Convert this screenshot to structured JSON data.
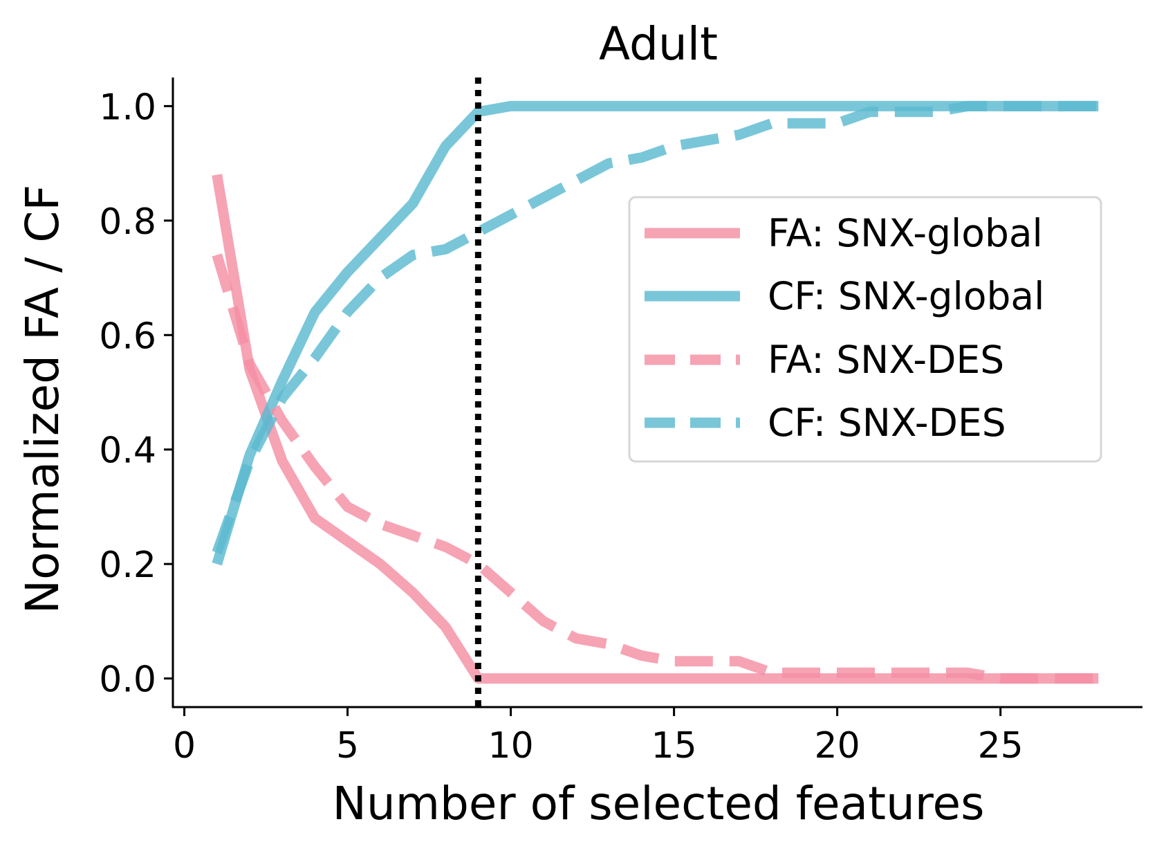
{
  "chart_data": {
    "type": "line",
    "title": "Adult",
    "xlabel": "Number of selected features",
    "ylabel": "Normalized FA / CF",
    "xlim": [
      -0.35,
      29.35
    ],
    "ylim": [
      -0.05,
      1.05
    ],
    "xticks": [
      0,
      5,
      10,
      15,
      20,
      25
    ],
    "yticks": [
      0.0,
      0.2,
      0.4,
      0.6,
      0.8,
      1.0
    ],
    "xtick_labels": [
      "0",
      "5",
      "10",
      "15",
      "20",
      "25"
    ],
    "ytick_labels": [
      "0.0",
      "0.2",
      "0.4",
      "0.6",
      "0.8",
      "1.0"
    ],
    "grid": false,
    "legend_position": "center-right",
    "vline": {
      "x": 9,
      "style": "dotted",
      "color": "#000000"
    },
    "x": [
      1,
      2,
      3,
      4,
      5,
      6,
      7,
      8,
      9,
      10,
      11,
      12,
      13,
      14,
      15,
      16,
      17,
      18,
      19,
      20,
      21,
      22,
      23,
      24,
      25,
      26,
      27,
      28
    ],
    "series": [
      {
        "name": "FA: SNX-global",
        "color": "#f48fa3",
        "dash": "solid",
        "values": [
          0.88,
          0.54,
          0.38,
          0.28,
          0.24,
          0.2,
          0.15,
          0.09,
          0.0,
          0.0,
          0.0,
          0.0,
          0.0,
          0.0,
          0.0,
          0.0,
          0.0,
          0.0,
          0.0,
          0.0,
          0.0,
          0.0,
          0.0,
          0.0,
          0.0,
          0.0,
          0.0,
          0.0
        ]
      },
      {
        "name": "CF: SNX-global",
        "color": "#5bbad1",
        "dash": "solid",
        "values": [
          0.2,
          0.39,
          0.52,
          0.64,
          0.71,
          0.77,
          0.83,
          0.93,
          0.99,
          1.0,
          1.0,
          1.0,
          1.0,
          1.0,
          1.0,
          1.0,
          1.0,
          1.0,
          1.0,
          1.0,
          1.0,
          1.0,
          1.0,
          1.0,
          1.0,
          1.0,
          1.0,
          1.0
        ]
      },
      {
        "name": "FA: SNX-DES",
        "color": "#f48fa3",
        "dash": "dashed",
        "values": [
          0.74,
          0.55,
          0.45,
          0.37,
          0.3,
          0.27,
          0.25,
          0.23,
          0.2,
          0.15,
          0.1,
          0.07,
          0.06,
          0.04,
          0.03,
          0.03,
          0.03,
          0.01,
          0.01,
          0.01,
          0.01,
          0.01,
          0.01,
          0.01,
          0.0,
          0.0,
          0.0,
          0.0
        ]
      },
      {
        "name": "CF: SNX-DES",
        "color": "#5bbad1",
        "dash": "dashed",
        "values": [
          0.22,
          0.38,
          0.49,
          0.56,
          0.64,
          0.7,
          0.74,
          0.75,
          0.78,
          0.81,
          0.84,
          0.87,
          0.9,
          0.91,
          0.93,
          0.94,
          0.95,
          0.97,
          0.97,
          0.97,
          0.99,
          0.99,
          0.99,
          1.0,
          1.0,
          1.0,
          1.0,
          1.0
        ]
      }
    ]
  }
}
